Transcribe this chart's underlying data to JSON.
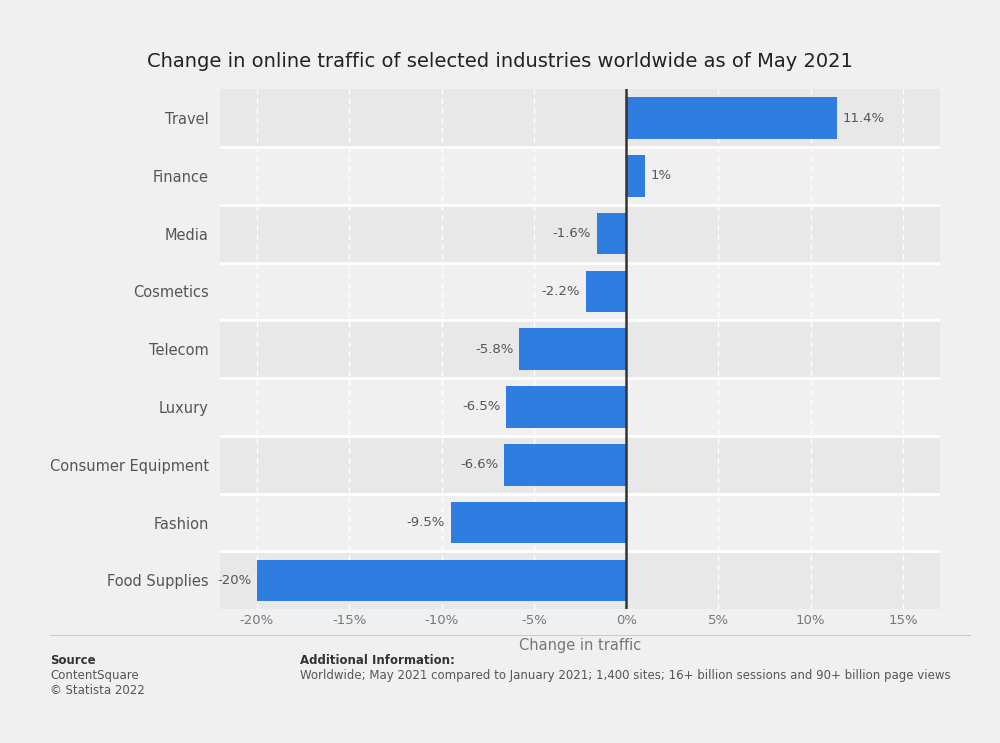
{
  "title": "Change in online traffic of selected industries worldwide as of May 2021",
  "categories": [
    "Food Supplies",
    "Fashion",
    "Consumer Equipment",
    "Luxury",
    "Telecom",
    "Cosmetics",
    "Media",
    "Finance",
    "Travel"
  ],
  "values": [
    -20,
    -9.5,
    -6.6,
    -6.5,
    -5.8,
    -2.2,
    -1.6,
    1,
    11.4
  ],
  "bar_color": "#2f7de1",
  "xlabel": "Change in traffic",
  "xlim": [
    -22,
    17
  ],
  "xticks": [
    -20,
    -15,
    -10,
    -5,
    0,
    5,
    10,
    15
  ],
  "xtick_labels": [
    "-20%",
    "-15%",
    "-10%",
    "-5%",
    "0%",
    "5%",
    "10%",
    "15%"
  ],
  "row_colors": [
    "#e8e8e8",
    "#f0f0f0"
  ],
  "background_color": "#f0f0f0",
  "title_fontsize": 14,
  "label_fontsize": 10.5,
  "tick_fontsize": 9.5,
  "value_labels": [
    "-20%",
    "-9.5%",
    "-6.6%",
    "-6.5%",
    "-5.8%",
    "-2.2%",
    "-1.6%",
    "1%",
    "11.4%"
  ],
  "source_label": "Source",
  "source_body": "ContentSquare\n© Statista 2022",
  "add_info_label": "Additional Information:",
  "add_info_body": "Worldwide; May 2021 compared to January 2021; 1,400 sites; 16+ billion sessions and 90+ billion page views",
  "footer_fontsize": 8.5
}
